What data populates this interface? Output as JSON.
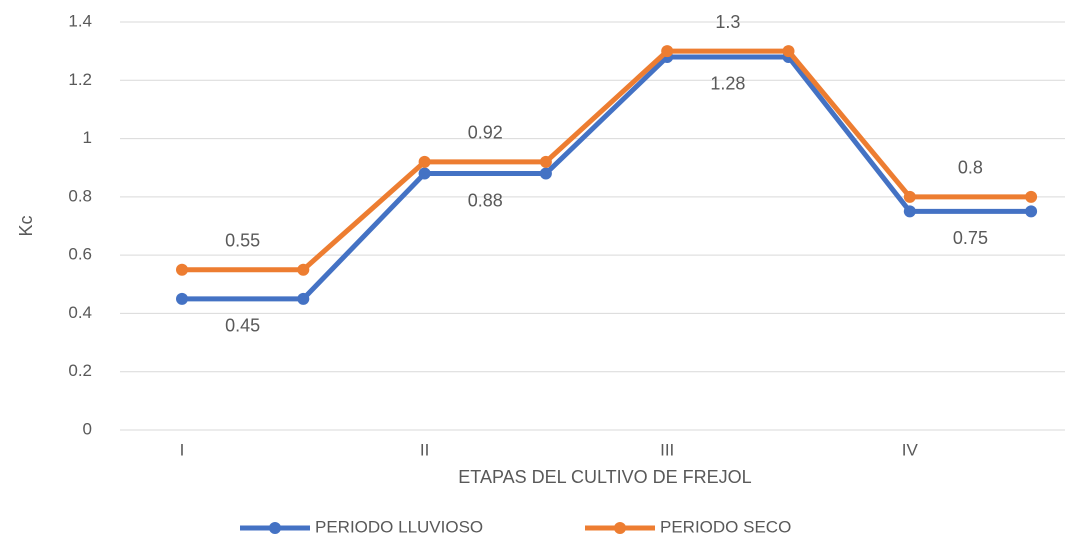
{
  "chart_data": {
    "type": "line",
    "x_label": "ETAPAS DEL CULTIVO DE FREJOL",
    "y_label": "Kc",
    "categories": [
      "I",
      null,
      "II",
      null,
      "III",
      null,
      "IV",
      null
    ],
    "series": [
      {
        "name": "PERIODO LLUVIOSO",
        "color": "#4472c4",
        "values": [
          0.45,
          0.45,
          0.88,
          0.88,
          1.28,
          1.28,
          0.75,
          0.75
        ]
      },
      {
        "name": "PERIODO SECO",
        "color": "#ed7d31",
        "values": [
          0.55,
          0.55,
          0.92,
          0.92,
          1.3,
          1.3,
          0.8,
          0.8
        ]
      }
    ],
    "ylim": [
      0,
      1.4
    ],
    "yticks": [
      0,
      0.2,
      0.4,
      0.6,
      0.8,
      1,
      1.2,
      1.4
    ],
    "grid": true
  }
}
